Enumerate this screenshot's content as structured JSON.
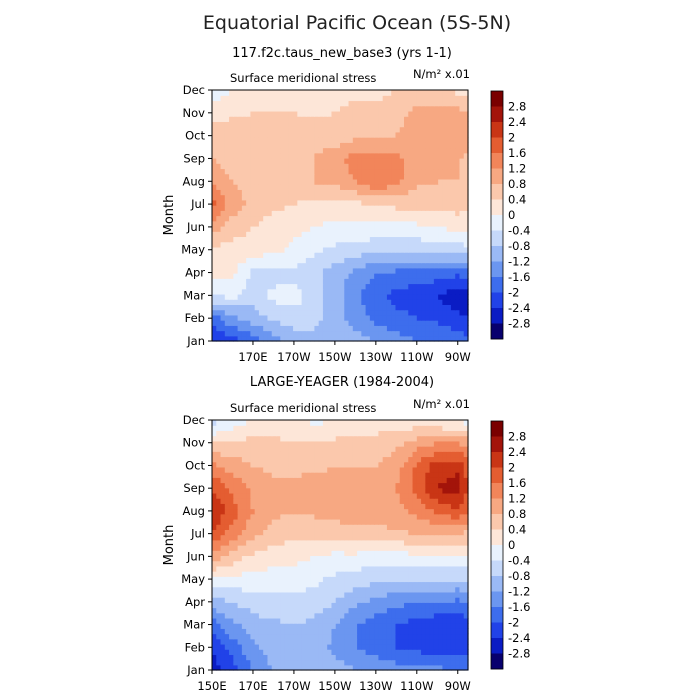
{
  "title": "Equatorial Pacific Ocean (5S-5N)",
  "colorbar_labels": [
    "2.8",
    "2.4",
    "2",
    "1.6",
    "1.2",
    "0.8",
    "0.4",
    "0",
    "-0.4",
    "-0.8",
    "-1.2",
    "-1.6",
    "-2",
    "-2.4",
    "-2.8"
  ],
  "colors": {
    "levels": [
      "#08006e",
      "#0a1cc4",
      "#2142e8",
      "#3d6ded",
      "#6b96f0",
      "#9ab9f5",
      "#c6d9fa",
      "#e9f2fd",
      "#fde6d8",
      "#fbc8ac",
      "#f7a882",
      "#f2855a",
      "#e45d31",
      "#c93515",
      "#a3140a",
      "#7a0000"
    ]
  },
  "chart_data": [
    {
      "type": "heatmap",
      "subtitle": "117.f2c.taus_new_base3 (yrs 1-1)",
      "left_title": "Surface meridional stress",
      "right_title": "N/m² x.01",
      "ylabel": "Month",
      "x_ticks": [
        "170E",
        "170W",
        "150W",
        "130W",
        "110W",
        "90W"
      ],
      "y_ticks": [
        "Jan",
        "Feb",
        "Mar",
        "Apr",
        "May",
        "Jun",
        "Jul",
        "Aug",
        "Sep",
        "Oct",
        "Nov",
        "Dec"
      ],
      "x_range": [
        "150E",
        "85W"
      ],
      "rows": [
        "Jan",
        "Feb",
        "Mar",
        "Apr",
        "May",
        "Jun",
        "Jul",
        "Aug",
        "Sep",
        "Oct",
        "Nov",
        "Dec"
      ],
      "cols": [
        "150E",
        "160E",
        "170E",
        "180",
        "170W",
        "160W",
        "150W",
        "140W",
        "130W",
        "120W",
        "110W",
        "100W",
        "90W",
        "85W"
      ],
      "values": [
        [
          -2.4,
          -2.2,
          -1.8,
          -1.4,
          -1.0,
          -0.9,
          -0.9,
          -1.0,
          -1.2,
          -1.4,
          -1.6,
          -1.6,
          -1.8,
          -1.9
        ],
        [
          -1.8,
          -1.3,
          -1.0,
          -0.7,
          -0.6,
          -0.7,
          -1.0,
          -1.4,
          -1.7,
          -1.9,
          -2.0,
          -2.1,
          -2.3,
          -2.3
        ],
        [
          -0.4,
          -0.3,
          -0.6,
          -0.3,
          -0.2,
          -0.6,
          -1.0,
          -1.5,
          -1.9,
          -2.1,
          -2.2,
          -2.4,
          -2.7,
          -2.7
        ],
        [
          0.1,
          0.1,
          -0.5,
          -0.6,
          -0.5,
          -0.7,
          -1.0,
          -1.3,
          -1.6,
          -1.7,
          -1.8,
          -1.8,
          -1.9,
          -1.8
        ],
        [
          0.3,
          0.2,
          0.2,
          0.1,
          -0.1,
          -0.3,
          -0.5,
          -0.6,
          -0.7,
          -0.7,
          -0.7,
          -0.6,
          -0.6,
          -0.5
        ],
        [
          1.0,
          0.6,
          0.4,
          0.2,
          0.1,
          0.0,
          -0.1,
          -0.1,
          -0.1,
          -0.1,
          -0.1,
          0.0,
          0.1,
          0.1
        ],
        [
          1.8,
          1.0,
          0.7,
          0.5,
          0.4,
          0.3,
          0.2,
          0.3,
          0.4,
          0.5,
          0.5,
          0.5,
          0.6,
          0.5
        ],
        [
          1.1,
          0.8,
          0.6,
          0.6,
          0.7,
          0.8,
          0.9,
          1.2,
          1.6,
          1.3,
          0.9,
          0.8,
          0.8,
          0.7
        ],
        [
          0.8,
          0.6,
          0.6,
          0.5,
          0.6,
          0.8,
          1.0,
          1.4,
          1.4,
          1.3,
          1.1,
          0.9,
          0.8,
          0.7
        ],
        [
          0.5,
          0.7,
          0.8,
          0.6,
          0.6,
          0.7,
          0.6,
          0.7,
          0.8,
          0.8,
          0.9,
          1.1,
          1.2,
          1.0
        ],
        [
          0.3,
          0.3,
          0.4,
          0.4,
          0.4,
          0.3,
          0.4,
          0.6,
          0.5,
          0.7,
          0.9,
          1.0,
          1.0,
          0.8
        ],
        [
          -0.3,
          0.0,
          0.2,
          0.1,
          0.1,
          0.0,
          0.1,
          0.3,
          0.3,
          0.4,
          0.5,
          0.4,
          0.3,
          0.2
        ]
      ]
    },
    {
      "type": "heatmap",
      "subtitle": "LARGE-YEAGER (1984-2004)",
      "left_title": "Surface meridional stress",
      "right_title": "N/m² x.01",
      "ylabel": "Month",
      "x_ticks": [
        "150E",
        "170E",
        "170W",
        "150W",
        "130W",
        "110W",
        "90W"
      ],
      "y_ticks": [
        "Jan",
        "Feb",
        "Mar",
        "Apr",
        "May",
        "Jun",
        "Jul",
        "Aug",
        "Sep",
        "Oct",
        "Nov",
        "Dec"
      ],
      "x_range": [
        "150E",
        "85W"
      ],
      "rows": [
        "Jan",
        "Feb",
        "Mar",
        "Apr",
        "May",
        "Jun",
        "Jul",
        "Aug",
        "Sep",
        "Oct",
        "Nov",
        "Dec"
      ],
      "cols": [
        "150E",
        "160E",
        "170E",
        "180",
        "170W",
        "160W",
        "150W",
        "140W",
        "130W",
        "120W",
        "110W",
        "100W",
        "90W",
        "85W"
      ],
      "values": [
        [
          -2.6,
          -2.2,
          -1.6,
          -1.2,
          -1.0,
          -0.9,
          -1.0,
          -1.2,
          -1.3,
          -1.4,
          -1.5,
          -1.5,
          -1.6,
          -1.6
        ],
        [
          -2.4,
          -1.8,
          -1.3,
          -1.0,
          -0.9,
          -1.0,
          -1.3,
          -1.6,
          -1.8,
          -2.0,
          -2.1,
          -2.2,
          -2.3,
          -2.2
        ],
        [
          -1.8,
          -1.3,
          -1.0,
          -0.9,
          -0.8,
          -0.9,
          -1.2,
          -1.6,
          -1.8,
          -2.0,
          -2.2,
          -2.3,
          -2.4,
          -2.2
        ],
        [
          -1.0,
          -0.8,
          -0.6,
          -0.5,
          -0.5,
          -0.6,
          -0.8,
          -1.1,
          -1.3,
          -1.5,
          -1.6,
          -1.6,
          -1.7,
          -1.5
        ],
        [
          0.0,
          -0.1,
          -0.2,
          -0.2,
          -0.2,
          -0.3,
          -0.5,
          -0.6,
          -0.7,
          -0.8,
          -0.8,
          -0.8,
          -0.8,
          -0.7
        ],
        [
          1.0,
          0.6,
          0.3,
          0.2,
          0.1,
          0.0,
          -0.1,
          -0.1,
          -0.2,
          -0.2,
          -0.1,
          -0.1,
          -0.1,
          -0.1
        ],
        [
          2.0,
          1.4,
          0.9,
          0.6,
          0.5,
          0.5,
          0.5,
          0.6,
          0.6,
          0.7,
          0.8,
          0.8,
          0.8,
          0.7
        ],
        [
          2.4,
          1.8,
          1.2,
          0.9,
          0.8,
          0.9,
          1.0,
          1.2,
          1.2,
          1.1,
          1.3,
          1.7,
          1.9,
          1.6
        ],
        [
          2.0,
          1.5,
          1.1,
          0.9,
          0.9,
          1.0,
          1.0,
          1.2,
          1.0,
          1.2,
          1.8,
          2.4,
          2.6,
          2.0
        ],
        [
          1.3,
          1.0,
          0.8,
          0.7,
          0.7,
          0.7,
          0.8,
          0.8,
          0.8,
          1.0,
          1.7,
          2.2,
          2.3,
          1.8
        ],
        [
          0.4,
          0.5,
          0.5,
          0.5,
          0.4,
          0.4,
          0.5,
          0.6,
          0.6,
          0.7,
          1.0,
          1.2,
          1.2,
          1.0
        ],
        [
          -0.6,
          -0.3,
          0.1,
          0.2,
          0.1,
          -0.1,
          0.0,
          0.1,
          0.1,
          0.2,
          0.1,
          0.0,
          -0.1,
          -0.2
        ]
      ]
    }
  ]
}
